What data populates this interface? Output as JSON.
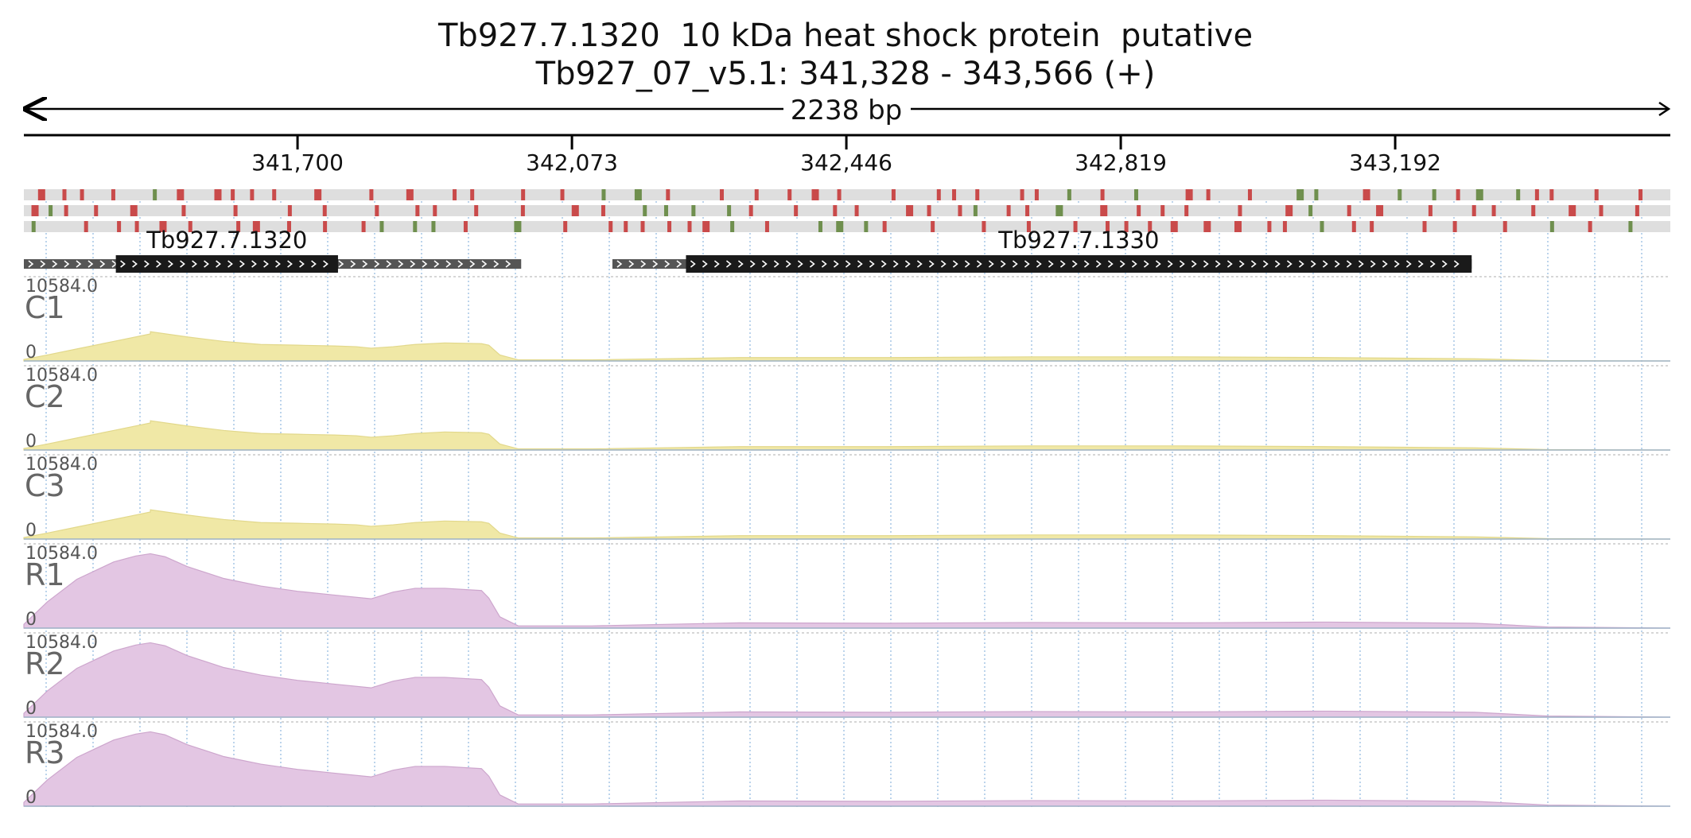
{
  "header": {
    "title_line1": "Tb927.7.1320  10 kDa heat shock protein  putative",
    "title_line2": "Tb927_07_v5.1: 341,328 - 343,566 (+)"
  },
  "ruler": {
    "span_label": "2238 bp",
    "ticks": [
      "341,700",
      "342,073",
      "342,446",
      "342,819",
      "343,192"
    ]
  },
  "chart_data": {
    "type": "area",
    "region": {
      "chrom": "Tb927_07_v5.1",
      "start": 341328,
      "end": 343566,
      "strand": "+"
    },
    "xlim": [
      341328,
      343566
    ],
    "x_ticks": [
      341700,
      342073,
      342446,
      342819,
      343192
    ],
    "genes": [
      {
        "name": "Tb927.7.1320",
        "utr_start": 341328,
        "cds_start": 341453,
        "cds_end": 341755,
        "utr_end": 342004
      },
      {
        "name": "Tb927.7.1330",
        "utr_start": 342128,
        "cds_start": 342228,
        "cds_end": 343296,
        "utr_end": 343296
      }
    ],
    "variant_rows": 3,
    "variant_colors": {
      "red": "#c94a4a",
      "green": "#6f8f4e"
    },
    "tracks": [
      {
        "name": "C1",
        "ymax": "10584.0",
        "ymin": "0",
        "color": "#f0e8a6",
        "stroke": "#e2d88b",
        "profile": "control"
      },
      {
        "name": "C2",
        "ymax": "10584.0",
        "ymin": "0",
        "color": "#f0e8a6",
        "stroke": "#e2d88b",
        "profile": "control"
      },
      {
        "name": "C3",
        "ymax": "10584.0",
        "ymin": "0",
        "color": "#f0e8a6",
        "stroke": "#e2d88b",
        "profile": "control"
      },
      {
        "name": "R1",
        "ymax": "10584.0",
        "ymin": "0",
        "color": "#e3c6e3",
        "stroke": "#cda6cd",
        "profile": "rna"
      },
      {
        "name": "R2",
        "ymax": "10584.0",
        "ymin": "0",
        "color": "#e3c6e3",
        "stroke": "#cda6cd",
        "profile": "rna"
      },
      {
        "name": "R3",
        "ymax": "10584.0",
        "ymin": "0",
        "color": "#e3c6e3",
        "stroke": "#cda6cd",
        "profile": "rna"
      }
    ],
    "profiles": {
      "control": {
        "x": [
          341328,
          341360,
          341400,
          341450,
          341500,
          341500,
          341550,
          341600,
          341650,
          341700,
          341750,
          341780,
          341800,
          341830,
          341860,
          341900,
          341950,
          341960,
          341975,
          342000,
          342100,
          342300,
          342500,
          342700,
          342900,
          343100,
          343300,
          343400,
          343566
        ],
        "y": [
          200,
          800,
          1600,
          2600,
          3600,
          3900,
          3200,
          2600,
          2200,
          2100,
          2000,
          1900,
          1700,
          1900,
          2200,
          2400,
          2300,
          2100,
          800,
          150,
          150,
          450,
          450,
          550,
          550,
          450,
          300,
          50,
          0
        ]
      },
      "rna": {
        "x": [
          341328,
          341360,
          341400,
          341450,
          341480,
          341500,
          341520,
          341550,
          341600,
          341650,
          341700,
          341750,
          341800,
          341830,
          341860,
          341900,
          341950,
          341960,
          341975,
          342000,
          342100,
          342300,
          342500,
          342700,
          342900,
          343100,
          343300,
          343400,
          343566
        ],
        "y": [
          500,
          3500,
          6500,
          8800,
          9600,
          9900,
          9500,
          8200,
          6600,
          5600,
          4900,
          4400,
          3900,
          4800,
          5300,
          5300,
          5000,
          4000,
          1500,
          300,
          300,
          700,
          650,
          750,
          700,
          800,
          650,
          150,
          0
        ]
      }
    }
  }
}
